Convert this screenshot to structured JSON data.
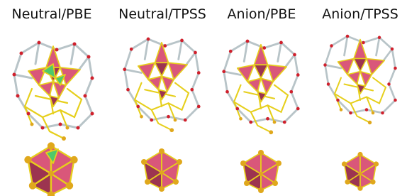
{
  "panels": [
    {
      "title": "Neutral/PBE"
    },
    {
      "title": "Neutral/TPSS"
    },
    {
      "title": "Anion/PBE"
    },
    {
      "title": "Anion/TPSS"
    }
  ]
}
